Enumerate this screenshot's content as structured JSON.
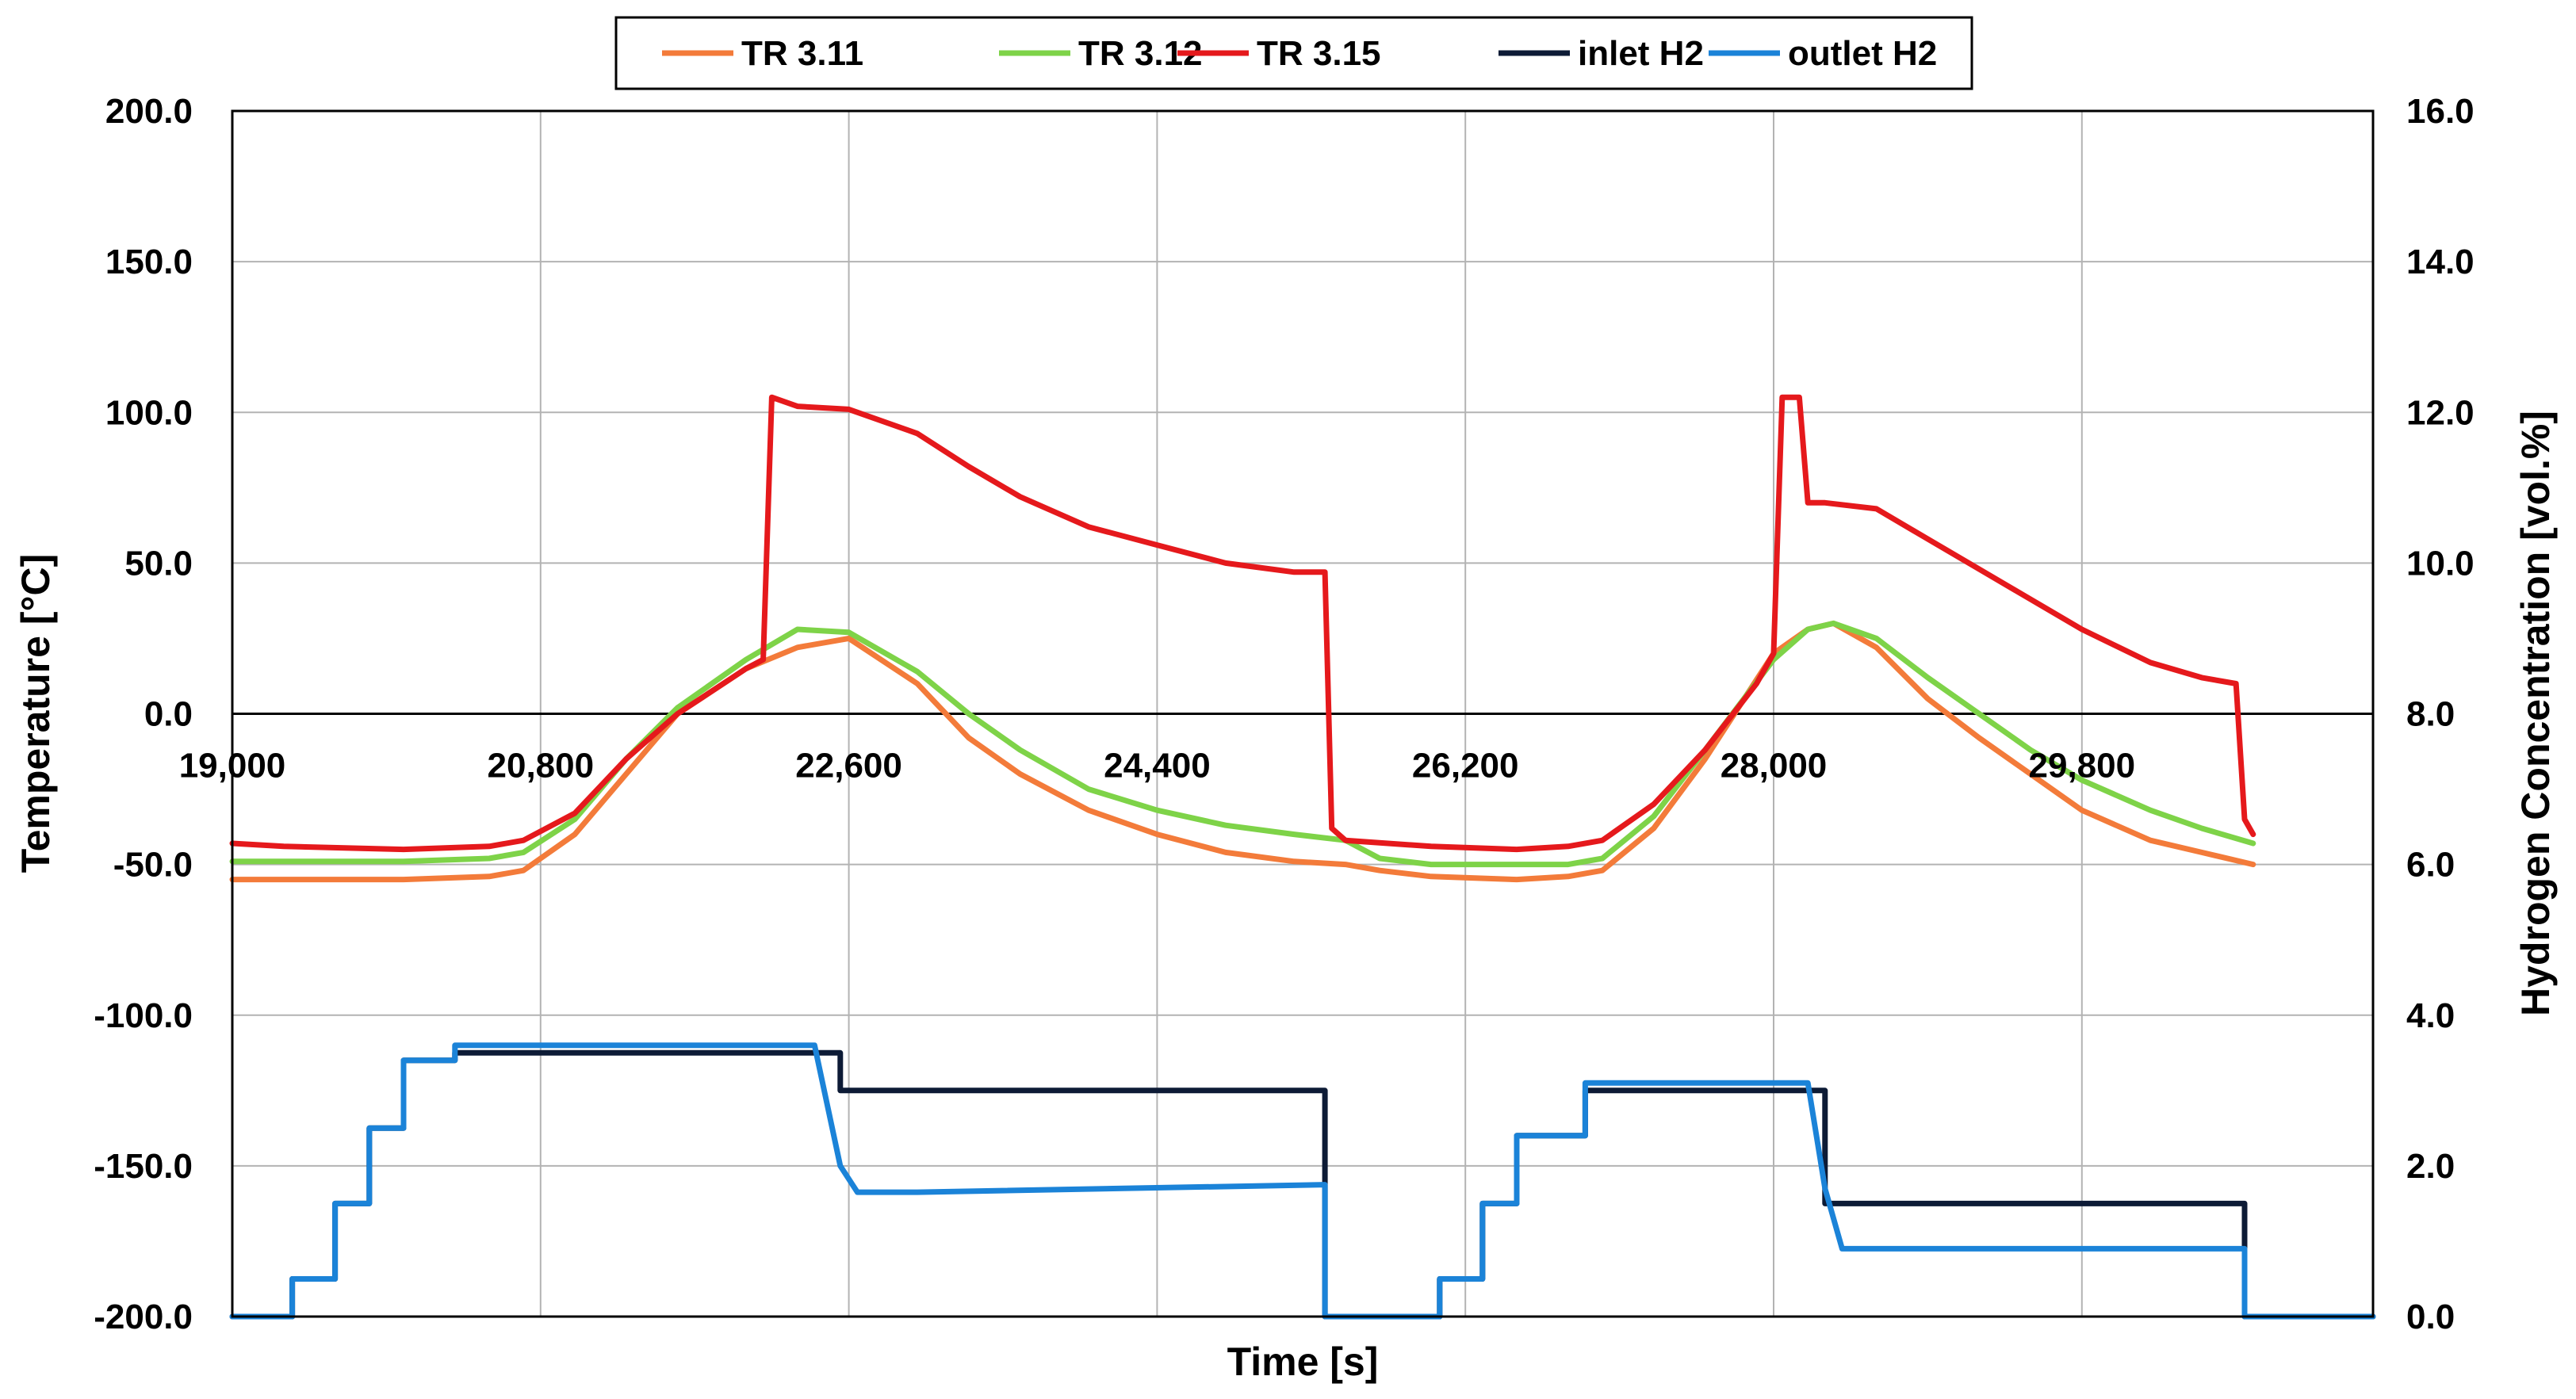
{
  "chart_data": {
    "type": "line",
    "xlabel": "Time [s]",
    "ylabel_left": "Temperature [°C]",
    "ylabel_right": "Hydrogen Concentration [vol.%]",
    "xlim": [
      19000,
      31500
    ],
    "ylim_left": [
      -200,
      200
    ],
    "ylim_right": [
      0,
      16
    ],
    "grid": true,
    "legend_position": "top-center",
    "x_ticks": [
      19000,
      20800,
      22600,
      24400,
      26200,
      28000,
      29800
    ],
    "x_tick_labels": [
      "19,000",
      "20,800",
      "22,600",
      "24,400",
      "26,200",
      "28,000",
      "29,800"
    ],
    "y_left_ticks": [
      200,
      150,
      100,
      50,
      0,
      -50,
      -100,
      -150,
      -200
    ],
    "y_left_tick_labels": [
      "200.0",
      "150.0",
      "100.0",
      "50.0",
      "0.0",
      "-50.0",
      "-100.0",
      "-150.0",
      "-200.0"
    ],
    "y_right_ticks": [
      16,
      14,
      12,
      10,
      8,
      6,
      4,
      2,
      0
    ],
    "y_right_tick_labels": [
      "16.0",
      "14.0",
      "12.0",
      "10.0",
      "8.0",
      "6.0",
      "4.0",
      "2.0",
      "0.0"
    ],
    "series": [
      {
        "name": "TR 3.11",
        "axis": "left",
        "color": "#F37B3A",
        "x": [
          19000,
          20000,
          20500,
          20700,
          21000,
          21300,
          21600,
          22000,
          22300,
          22600,
          23000,
          23300,
          23600,
          24000,
          24400,
          24800,
          25200,
          25500,
          25700,
          26000,
          26500,
          26800,
          27000,
          27300,
          27600,
          28000,
          28200,
          28350,
          28600,
          28900,
          29200,
          29500,
          29800,
          30200,
          30500,
          30800
        ],
        "y": [
          -55,
          -55,
          -54,
          -52,
          -40,
          -20,
          0,
          15,
          22,
          25,
          10,
          -8,
          -20,
          -32,
          -40,
          -46,
          -49,
          -50,
          -52,
          -54,
          -55,
          -54,
          -52,
          -38,
          -15,
          20,
          28,
          30,
          22,
          5,
          -8,
          -20,
          -32,
          -42,
          -46,
          -50
        ]
      },
      {
        "name": "TR 3.12",
        "axis": "left",
        "color": "#7ED348",
        "x": [
          19000,
          20000,
          20500,
          20700,
          21000,
          21300,
          21600,
          22000,
          22300,
          22600,
          23000,
          23300,
          23600,
          24000,
          24400,
          24800,
          25200,
          25500,
          25700,
          26000,
          26500,
          26800,
          27000,
          27300,
          27600,
          28000,
          28200,
          28350,
          28600,
          28900,
          29200,
          29500,
          29800,
          30200,
          30500,
          30800
        ],
        "y": [
          -49,
          -49,
          -48,
          -46,
          -35,
          -15,
          2,
          18,
          28,
          27,
          14,
          0,
          -12,
          -25,
          -32,
          -37,
          -40,
          -42,
          -48,
          -50,
          -50,
          -50,
          -48,
          -34,
          -12,
          18,
          28,
          30,
          25,
          12,
          0,
          -12,
          -22,
          -32,
          -38,
          -43
        ]
      },
      {
        "name": "TR 3.15",
        "axis": "left",
        "color": "#E5191C",
        "x": [
          19000,
          19300,
          20000,
          20500,
          20700,
          21000,
          21300,
          21600,
          22000,
          22100,
          22150,
          22300,
          22600,
          23000,
          23300,
          23600,
          24000,
          24400,
          24800,
          25200,
          25380,
          25420,
          25500,
          26000,
          26500,
          26800,
          27000,
          27300,
          27600,
          27900,
          28000,
          28050,
          28150,
          28200,
          28300,
          28600,
          28900,
          29200,
          29500,
          29800,
          30200,
          30500,
          30700,
          30750,
          30800
        ],
        "y": [
          -43,
          -44,
          -45,
          -44,
          -42,
          -33,
          -15,
          0,
          15,
          18,
          105,
          102,
          101,
          93,
          82,
          72,
          62,
          56,
          50,
          47,
          47,
          -38,
          -42,
          -44,
          -45,
          -44,
          -42,
          -30,
          -12,
          10,
          20,
          105,
          105,
          70,
          70,
          68,
          58,
          48,
          38,
          28,
          17,
          12,
          10,
          -35,
          -40
        ]
      },
      {
        "name": "inlet H2",
        "axis": "right",
        "color": "#0D1B36",
        "x": [
          19000,
          19350,
          19350,
          19600,
          19600,
          19800,
          19800,
          20000,
          20000,
          20300,
          20300,
          22550,
          22550,
          25380,
          25380,
          26050,
          26050,
          26300,
          26300,
          26500,
          26500,
          26900,
          26900,
          28300,
          28300,
          30750,
          30750,
          31500
        ],
        "y": [
          0,
          0,
          0.5,
          0.5,
          1.5,
          1.5,
          2.5,
          2.5,
          3.4,
          3.4,
          3.5,
          3.5,
          3.0,
          3.0,
          0,
          0,
          0.5,
          0.5,
          1.5,
          1.5,
          2.4,
          2.4,
          3.0,
          3.0,
          1.5,
          1.5,
          0,
          0
        ]
      },
      {
        "name": "outlet H2",
        "axis": "right",
        "color": "#1B83D8",
        "x": [
          19000,
          19350,
          19350,
          19600,
          19600,
          19800,
          19800,
          20000,
          20000,
          20300,
          20300,
          22400,
          22550,
          22650,
          23000,
          25380,
          25380,
          26050,
          26050,
          26300,
          26300,
          26500,
          26500,
          26900,
          26900,
          28200,
          28300,
          28400,
          30750,
          30750,
          31500
        ],
        "y": [
          0,
          0,
          0.5,
          0.5,
          1.5,
          1.5,
          2.5,
          2.5,
          3.4,
          3.4,
          3.6,
          3.6,
          2.0,
          1.65,
          1.65,
          1.75,
          0,
          0,
          0.5,
          0.5,
          1.5,
          1.5,
          2.4,
          2.4,
          3.1,
          3.1,
          1.7,
          0.9,
          0.9,
          0,
          0
        ]
      }
    ]
  }
}
